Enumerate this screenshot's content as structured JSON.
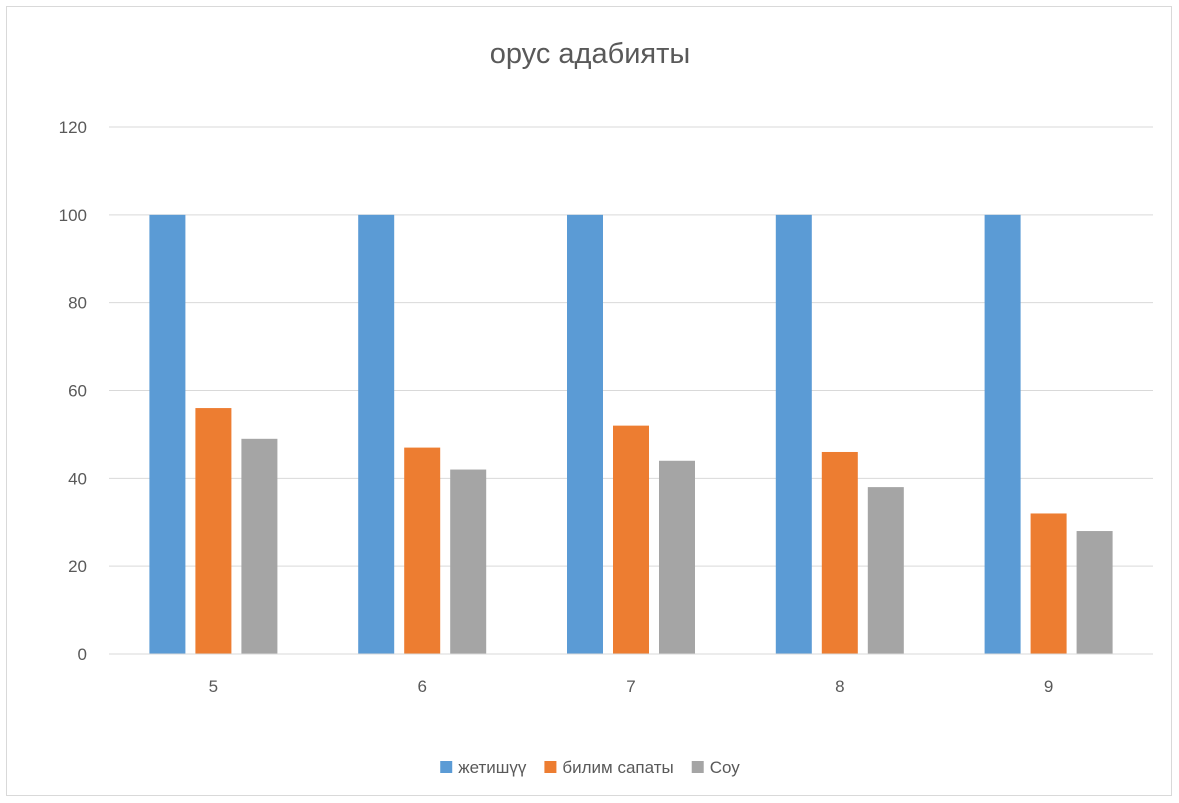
{
  "chart_data": {
    "type": "bar",
    "title": "орус адабияты",
    "categories": [
      "5",
      "6",
      "7",
      "8",
      "9"
    ],
    "series": [
      {
        "name": "жетишүү",
        "color": "#5b9bd5",
        "values": [
          100,
          100,
          100,
          100,
          100
        ]
      },
      {
        "name": "билим сапаты",
        "color": "#ed7d31",
        "values": [
          56,
          47,
          52,
          46,
          32
        ]
      },
      {
        "name": "Соу",
        "color": "#a5a5a5",
        "values": [
          49,
          42,
          44,
          38,
          28
        ]
      }
    ],
    "ylim": [
      0,
      120
    ],
    "yticks": [
      0,
      20,
      40,
      60,
      80,
      100,
      120
    ],
    "grid": true,
    "legend": "bottom"
  }
}
